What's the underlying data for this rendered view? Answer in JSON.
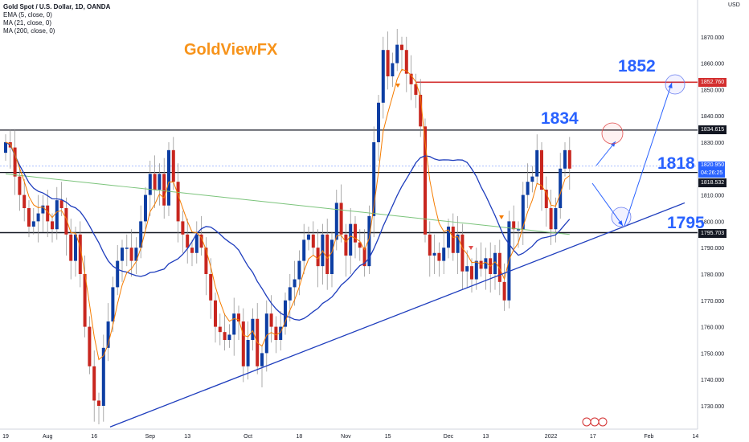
{
  "legend": {
    "symbol": "Gold Spot / U.S. Dollar, 1D, OANDA",
    "ema": "EMA (5, close, 0)",
    "ma21": "MA (21, close, 0)",
    "ma200": "MA (200, close, 0)"
  },
  "brand": "GoldViewFX",
  "annotations": {
    "a1852": "1852",
    "a1834": "1834",
    "a1818": "1818",
    "a1795": "1795"
  },
  "axis": {
    "currency": "USD"
  },
  "price_tags": {
    "t1852": "1852.760",
    "t1834": "1834.615",
    "current": "1820.950",
    "countdown": "04:26:25",
    "t1818": "1818.532",
    "t1795": "1795.703"
  },
  "colors": {
    "up": "#0d3ea3",
    "down": "#c8261f",
    "ema": "#f57c00",
    "ma21": "#1e3dbd",
    "ma200": "#7cc47c",
    "red_line": "#d32f2f"
  },
  "chart_data": {
    "type": "candlestick",
    "ylim": [
      1720,
      1880
    ],
    "yticks": [
      1730,
      1740,
      1750,
      1760,
      1770,
      1780,
      1790,
      1800,
      1810,
      1820,
      1830,
      1840,
      1850,
      1860,
      1870
    ],
    "xticks": [
      {
        "label": "19",
        "i": 0
      },
      {
        "label": "Aug",
        "i": 9
      },
      {
        "label": "16",
        "i": 19
      },
      {
        "label": "Sep",
        "i": 31
      },
      {
        "label": "13",
        "i": 39
      },
      {
        "label": "Oct",
        "i": 52
      },
      {
        "label": "18",
        "i": 63
      },
      {
        "label": "Nov",
        "i": 73
      },
      {
        "label": "15",
        "i": 82
      },
      {
        "label": "Dec",
        "i": 95
      },
      {
        "label": "13",
        "i": 103
      },
      {
        "label": "2022",
        "i": 117
      },
      {
        "label": "17",
        "i": 126
      },
      {
        "label": "Feb",
        "i": 138
      },
      {
        "label": "14",
        "i": 148
      }
    ],
    "close": [
      1830,
      1828,
      1817,
      1810,
      1805,
      1798,
      1800,
      1803,
      1806,
      1800,
      1797,
      1808,
      1805,
      1795,
      1785,
      1795,
      1780,
      1760,
      1745,
      1732,
      1730,
      1752,
      1762,
      1775,
      1785,
      1790,
      1790,
      1785,
      1790,
      1800,
      1810,
      1818,
      1812,
      1818,
      1806,
      1827,
      1815,
      1800,
      1795,
      1790,
      1788,
      1795,
      1790,
      1780,
      1770,
      1760,
      1758,
      1755,
      1757,
      1765,
      1762,
      1745,
      1755,
      1763,
      1745,
      1750,
      1765,
      1760,
      1755,
      1760,
      1770,
      1775,
      1778,
      1785,
      1793,
      1795,
      1790,
      1783,
      1795,
      1780,
      1793,
      1807,
      1795,
      1787,
      1799,
      1792,
      1790,
      1783,
      1802,
      1830,
      1845,
      1865,
      1855,
      1860,
      1867,
      1865,
      1856,
      1852,
      1848,
      1836,
      1795,
      1787,
      1788,
      1785,
      1790,
      1798,
      1788,
      1795,
      1781,
      1783,
      1778,
      1785,
      1782,
      1786,
      1780,
      1788,
      1777,
      1770,
      1800,
      1797,
      1797,
      1810,
      1815,
      1817,
      1827,
      1812,
      1805,
      1797,
      1805,
      1820,
      1827,
      1820
    ]
  }
}
